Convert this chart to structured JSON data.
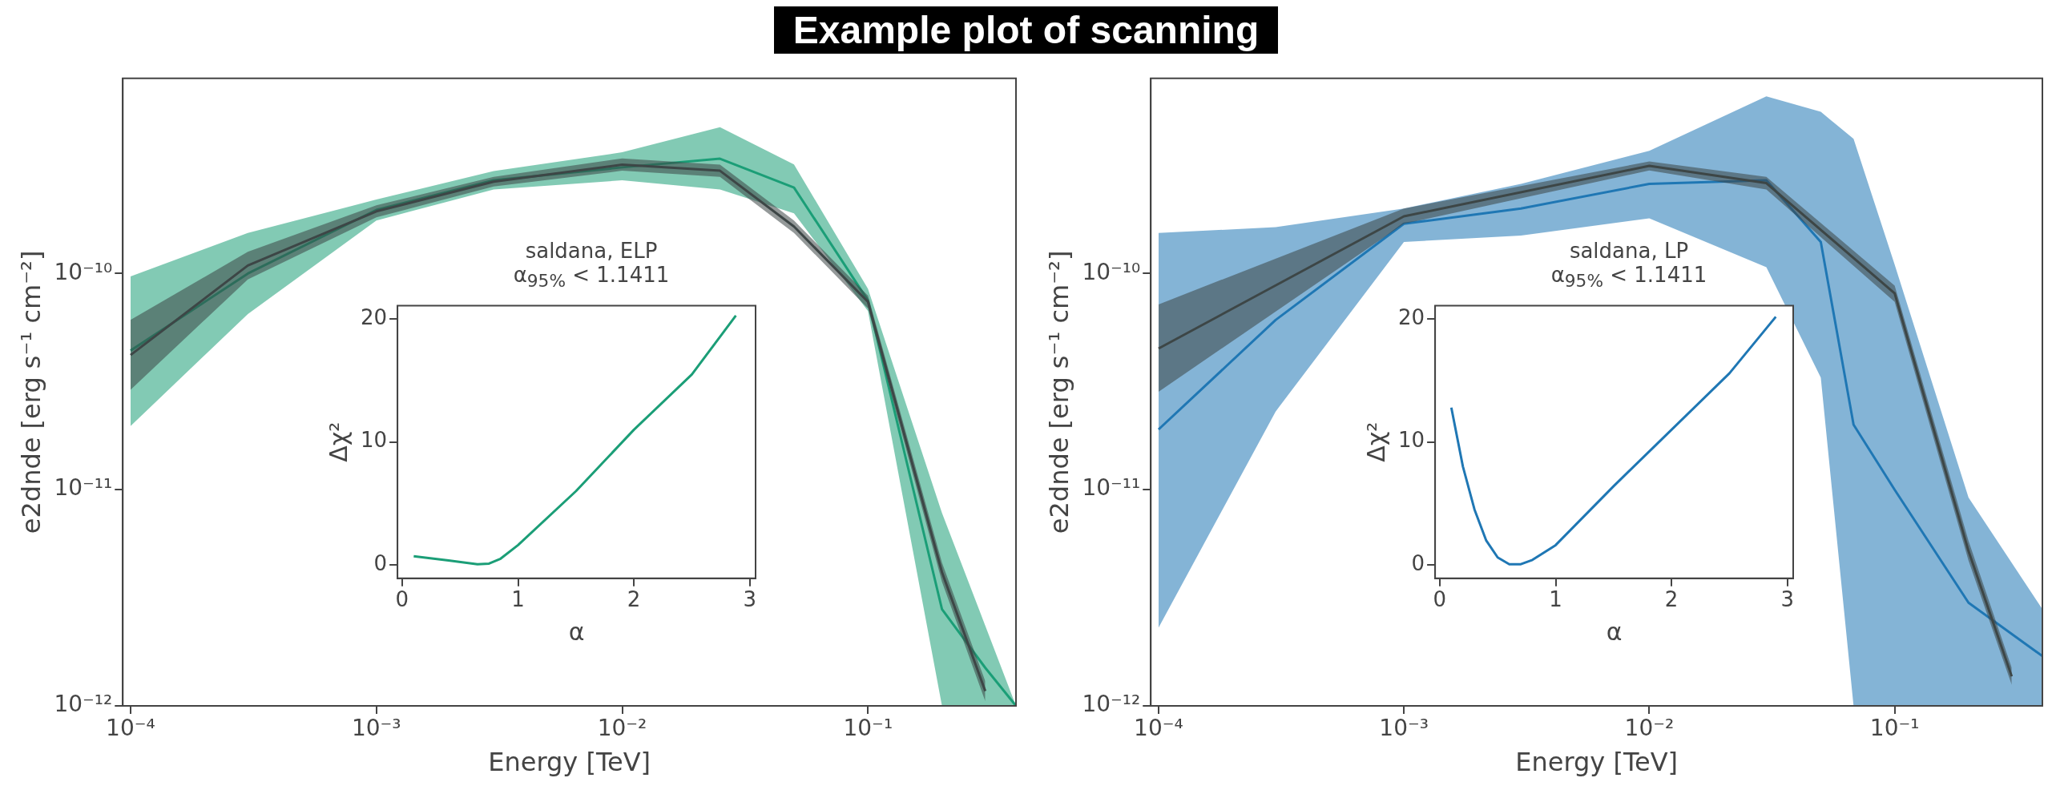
{
  "chart_data": [
    {
      "type": "line",
      "title": "Example plot of scanning",
      "xlabel": "Energy [TeV]",
      "ylabel": "e2dnde [erg s⁻¹ cm⁻²]",
      "log": "xy",
      "grid": false,
      "legend": false,
      "xlim": [
        9.3e-05,
        0.4
      ],
      "ylim": [
        1e-12,
        8e-10
      ],
      "xticks": [
        {
          "value": 0.0001,
          "label": "10⁻⁴"
        },
        {
          "value": 0.001,
          "label": "10⁻³"
        },
        {
          "value": 0.01,
          "label": "10⁻²"
        },
        {
          "value": 0.1,
          "label": "10⁻¹"
        }
      ],
      "yticks": [
        {
          "value": 1e-12,
          "label": "10⁻¹²"
        },
        {
          "value": 1e-11,
          "label": "10⁻¹¹"
        },
        {
          "value": 1e-10,
          "label": "10⁻¹⁰"
        }
      ],
      "series": [
        {
          "color": "#1b9e77",
          "x": [
            0.0001,
            0.0003,
            0.001,
            0.003,
            0.01,
            0.025,
            0.05,
            0.1,
            0.2,
            0.3,
            0.4
          ],
          "values": [
            4.4e-11,
            1e-10,
            1.97e-10,
            2.7e-10,
            3.1e-10,
            3.4e-10,
            2.5e-10,
            7.5e-11,
            2.8e-12,
            1.5e-12,
            1e-12
          ],
          "lower": [
            1.97e-11,
            6.5e-11,
            1.76e-10,
            2.45e-10,
            2.7e-10,
            2.45e-10,
            1.9e-10,
            6.7e-11,
            1e-12,
            1e-12,
            1e-12
          ],
          "upper": [
            9.7e-11,
            1.54e-10,
            2.2e-10,
            2.98e-10,
            3.64e-10,
            4.76e-10,
            3.2e-10,
            8.5e-11,
            7.8e-12,
            2.35e-12,
            1e-12
          ]
        },
        {
          "color": "#3d4646",
          "x": [
            0.0001,
            0.0003,
            0.001,
            0.003,
            0.01,
            0.025,
            0.05,
            0.1,
            0.2,
            0.3
          ],
          "values": [
            4.2e-11,
            1.09e-10,
            1.94e-10,
            2.66e-10,
            3.19e-10,
            2.99e-10,
            1.65e-10,
            7.4e-11,
            4.15e-12,
            1.17e-12
          ],
          "lower": [
            2.9e-11,
            9.4e-11,
            1.82e-10,
            2.53e-10,
            2.99e-10,
            2.8e-10,
            1.54e-10,
            6.9e-11,
            3.75e-12,
            1.05e-12
          ],
          "upper": [
            6.1e-11,
            1.26e-10,
            2.07e-10,
            2.8e-10,
            3.41e-10,
            3.19e-10,
            1.76e-10,
            7.9e-11,
            4.6e-12,
            1.3e-12
          ]
        }
      ]
    },
    {
      "type": "line",
      "title": "saldana, ELP",
      "subtitle": "α$_{95%}$ < 1.1411",
      "xlabel": "α",
      "ylabel": "Δχ²",
      "grid": false,
      "legend": false,
      "xlim": [
        -0.04,
        3.05
      ],
      "ylim": [
        -1.1,
        21.1
      ],
      "xticks": [
        0,
        1,
        2,
        3
      ],
      "yticks": [
        0,
        10,
        20
      ],
      "series": [
        {
          "color": "#1b9e77",
          "x": [
            0.1,
            0.4,
            0.65,
            0.75,
            0.85,
            1.0,
            1.5,
            2.0,
            2.5,
            2.88
          ],
          "values": [
            0.7,
            0.35,
            0.05,
            0.1,
            0.5,
            1.6,
            6,
            11,
            15.5,
            20.3
          ]
        }
      ]
    },
    {
      "type": "line",
      "xlabel": "Energy [TeV]",
      "ylabel": "e2dnde [erg s⁻¹ cm⁻²]",
      "log": "xy",
      "grid": false,
      "legend": false,
      "xlim": [
        9.3e-05,
        0.4
      ],
      "ylim": [
        1e-12,
        8e-10
      ],
      "xticks": [
        {
          "value": 0.0001,
          "label": "10⁻⁴"
        },
        {
          "value": 0.001,
          "label": "10⁻³"
        },
        {
          "value": 0.01,
          "label": "10⁻²"
        },
        {
          "value": 0.1,
          "label": "10⁻¹"
        }
      ],
      "yticks": [
        {
          "value": 1e-12,
          "label": "10⁻¹²"
        },
        {
          "value": 1e-11,
          "label": "10⁻¹¹"
        },
        {
          "value": 1e-10,
          "label": "10⁻¹⁰"
        }
      ],
      "series": [
        {
          "color": "#1f77b4",
          "x": [
            0.0001,
            0.0003,
            0.001,
            0.003,
            0.01,
            0.03,
            0.05,
            0.068,
            0.1,
            0.2,
            0.4
          ],
          "values": [
            1.9e-11,
            6.1e-11,
            1.7e-10,
            2e-10,
            2.6e-10,
            2.7e-10,
            1.4e-10,
            2e-11,
            1e-11,
            3e-12,
            1.7e-12
          ],
          "lower": [
            2.3e-12,
            2.3e-11,
            1.4e-10,
            1.5e-10,
            1.8e-10,
            1.07e-10,
            3.3e-11,
            1e-12,
            1e-12,
            1e-12,
            1e-12
          ],
          "upper": [
            1.54e-10,
            1.64e-10,
            2e-10,
            2.6e-10,
            3.7e-10,
            6.6e-10,
            5.6e-10,
            4.2e-10,
            1.1e-10,
            9.2e-12,
            2.8e-12
          ]
        },
        {
          "color": "#3d4646",
          "x": [
            0.0001,
            0.001,
            0.01,
            0.03,
            0.1,
            0.2,
            0.3
          ],
          "values": [
            4.5e-11,
            1.84e-10,
            3.15e-10,
            2.62e-10,
            8.1e-11,
            5.2e-12,
            1.37e-12
          ],
          "lower": [
            2.84e-11,
            1.7e-10,
            3e-10,
            2.45e-10,
            7.4e-11,
            4.7e-12,
            1.25e-12
          ],
          "upper": [
            7.2e-11,
            2e-10,
            3.3e-10,
            2.8e-10,
            8.8e-11,
            5.8e-12,
            1.5e-12
          ]
        }
      ]
    },
    {
      "type": "line",
      "title": "saldana, LP",
      "subtitle": "α$_{95%}$ < 1.1411",
      "xlabel": "α",
      "ylabel": "Δχ²",
      "grid": false,
      "legend": false,
      "xlim": [
        -0.04,
        3.05
      ],
      "ylim": [
        -1.1,
        21.1
      ],
      "xticks": [
        0,
        1,
        2,
        3
      ],
      "yticks": [
        0,
        10,
        20
      ],
      "series": [
        {
          "color": "#1f77b4",
          "x": [
            0.1,
            0.2,
            0.3,
            0.4,
            0.5,
            0.6,
            0.7,
            0.8,
            1.0,
            1.5,
            2.0,
            2.5,
            2.9
          ],
          "values": [
            12.8,
            8,
            4.5,
            2,
            0.6,
            0.05,
            0.05,
            0.4,
            1.6,
            6.4,
            11,
            15.6,
            20.2
          ]
        }
      ]
    }
  ]
}
